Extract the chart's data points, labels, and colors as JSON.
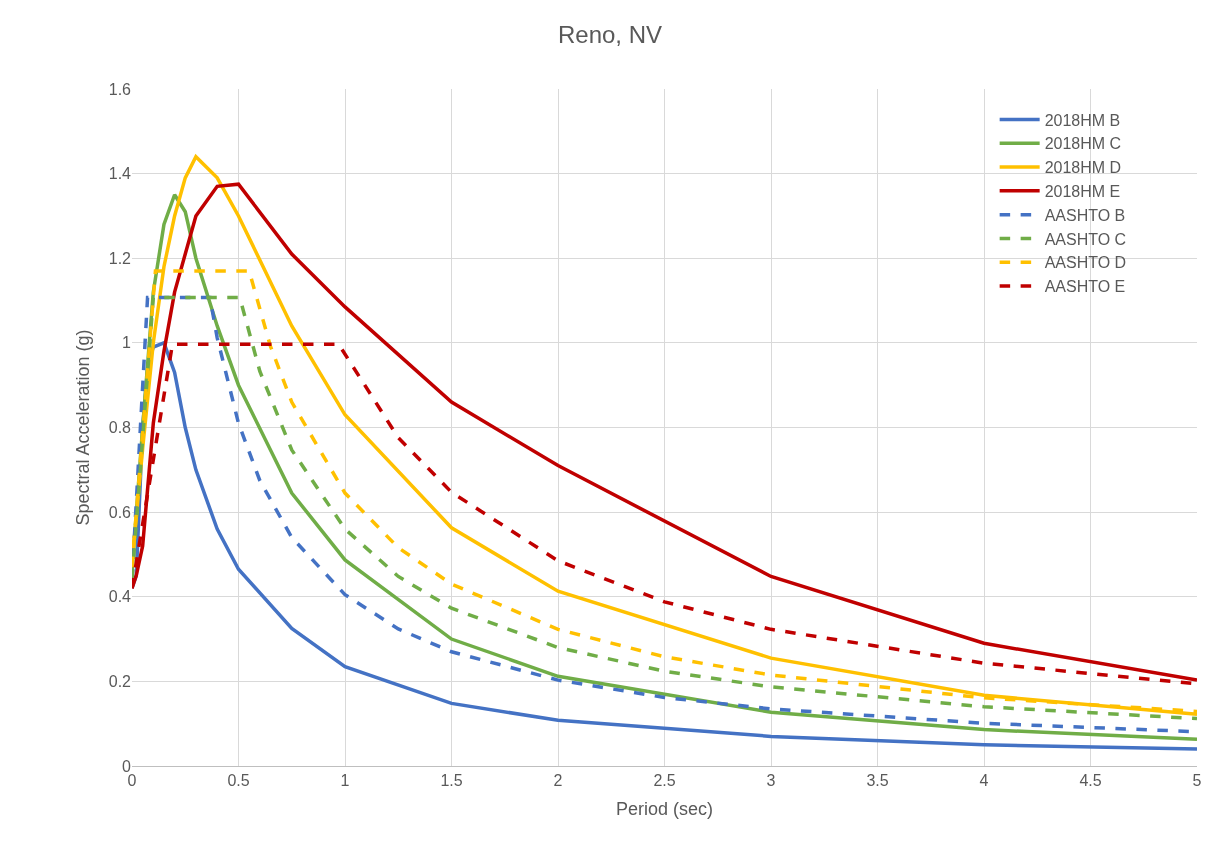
{
  "chart_data": {
    "type": "line",
    "title": "Reno, NV",
    "xlabel": "Period (sec)",
    "ylabel": "Spectral Acceleration (g)",
    "xlim": [
      0,
      5
    ],
    "xticks": [
      0,
      0.5,
      1,
      1.5,
      2,
      2.5,
      3,
      3.5,
      4,
      4.5,
      5
    ],
    "ylim": [
      0,
      1.6
    ],
    "yticks": [
      0,
      0.2,
      0.4,
      0.6,
      0.8,
      1,
      1.2,
      1.4,
      1.6
    ],
    "grid": true,
    "legend": "top right",
    "marker": "none",
    "series": [
      {
        "name": "2018HM B",
        "color": "#4472c4",
        "line_style": "solid",
        "x": [
          0,
          0.02,
          0.05,
          0.075,
          0.1,
          0.15,
          0.2,
          0.25,
          0.3,
          0.4,
          0.5,
          0.75,
          1,
          1.5,
          2,
          3,
          4,
          5
        ],
        "values": [
          0.42,
          0.45,
          0.8,
          0.95,
          0.99,
          1.0,
          0.93,
          0.8,
          0.7,
          0.56,
          0.465,
          0.325,
          0.235,
          0.148,
          0.108,
          0.07,
          0.05,
          0.04
        ]
      },
      {
        "name": "2018HM C",
        "color": "#70ad47",
        "line_style": "solid",
        "x": [
          0,
          0.05,
          0.1,
          0.15,
          0.2,
          0.25,
          0.3,
          0.4,
          0.5,
          0.75,
          1,
          1.5,
          2,
          3,
          4,
          5
        ],
        "values": [
          0.46,
          0.8,
          1.12,
          1.28,
          1.35,
          1.31,
          1.2,
          1.04,
          0.9,
          0.645,
          0.487,
          0.3,
          0.212,
          0.127,
          0.086,
          0.063
        ]
      },
      {
        "name": "2018HM D",
        "color": "#ffc000",
        "line_style": "solid",
        "x": [
          0,
          0.05,
          0.1,
          0.15,
          0.2,
          0.25,
          0.3,
          0.4,
          0.5,
          0.75,
          1,
          1.5,
          2,
          3,
          4,
          5
        ],
        "values": [
          0.48,
          0.75,
          1.0,
          1.18,
          1.3,
          1.39,
          1.44,
          1.39,
          1.3,
          1.04,
          0.83,
          0.563,
          0.413,
          0.255,
          0.167,
          0.122
        ]
      },
      {
        "name": "2018HM E",
        "color": "#c00000",
        "line_style": "solid",
        "x": [
          0,
          0.02,
          0.05,
          0.1,
          0.15,
          0.2,
          0.3,
          0.4,
          0.5,
          0.75,
          1,
          1.5,
          2,
          3,
          4,
          5
        ],
        "values": [
          0.42,
          0.45,
          0.52,
          0.81,
          0.98,
          1.12,
          1.3,
          1.37,
          1.375,
          1.21,
          1.085,
          0.86,
          0.71,
          0.448,
          0.29,
          0.203
        ]
      },
      {
        "name": "AASHTO B",
        "color": "#4472c4",
        "line_style": "dashed",
        "x": [
          0,
          0.073,
          0.366,
          0.4,
          0.5,
          0.6,
          0.75,
          1,
          1.25,
          1.5,
          2,
          2.5,
          3,
          4,
          5
        ],
        "values": [
          0.44,
          1.107,
          1.107,
          1.012,
          0.81,
          0.675,
          0.54,
          0.405,
          0.324,
          0.27,
          0.203,
          0.162,
          0.135,
          0.101,
          0.081
        ]
      },
      {
        "name": "AASHTO C",
        "color": "#70ad47",
        "line_style": "dashed",
        "x": [
          0,
          0.1,
          0.506,
          0.6,
          0.75,
          1,
          1.25,
          1.5,
          2,
          2.5,
          3,
          4,
          5
        ],
        "values": [
          0.44,
          1.107,
          1.107,
          0.933,
          0.747,
          0.56,
          0.448,
          0.373,
          0.28,
          0.224,
          0.187,
          0.14,
          0.112
        ]
      },
      {
        "name": "AASHTO D",
        "color": "#ffc000",
        "line_style": "dashed",
        "x": [
          0,
          0.11,
          0.55,
          0.65,
          0.75,
          1,
          1.25,
          1.5,
          2,
          2.5,
          3,
          4,
          5
        ],
        "values": [
          0.47,
          1.17,
          1.17,
          0.992,
          0.86,
          0.645,
          0.516,
          0.43,
          0.323,
          0.258,
          0.215,
          0.161,
          0.129
        ]
      },
      {
        "name": "AASHTO E",
        "color": "#c00000",
        "line_style": "dashed",
        "x": [
          0,
          0.19,
          0.97,
          1.25,
          1.5,
          2,
          2.5,
          3,
          4,
          5
        ],
        "values": [
          0.42,
          0.997,
          0.997,
          0.776,
          0.647,
          0.485,
          0.388,
          0.323,
          0.243,
          0.194
        ]
      }
    ]
  }
}
